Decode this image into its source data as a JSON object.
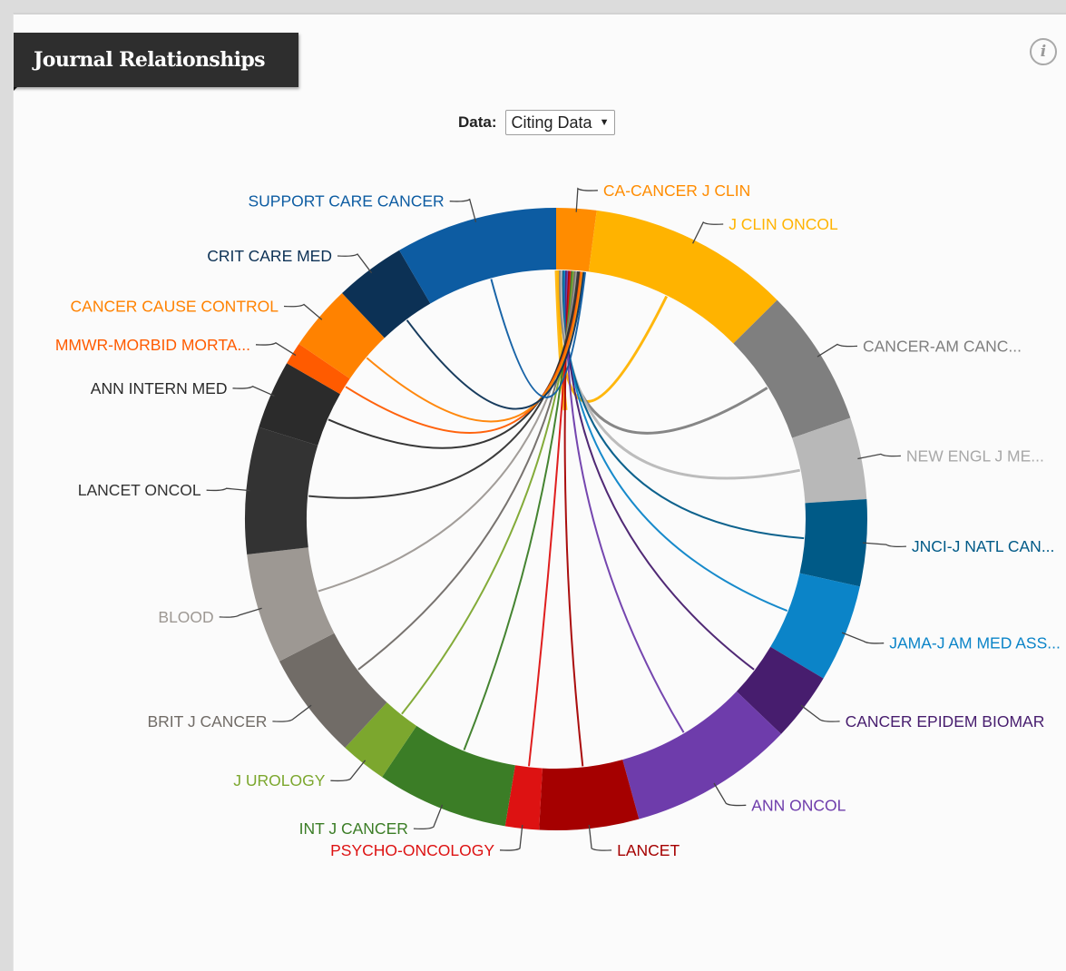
{
  "panel": {
    "title": "Journal Relationships",
    "info_icon": "info-icon"
  },
  "selector": {
    "label": "Data:",
    "value": "Citing Data",
    "caret": "▼"
  },
  "chart_data": {
    "type": "chord",
    "center_journal": "CA-CANCER J CLIN",
    "segments": [
      {
        "name": "CA-CANCER J CLIN",
        "color": "#ff8c00",
        "share": 2.5
      },
      {
        "name": "J CLIN ONCOL",
        "color": "#ffb300",
        "share": 12.6
      },
      {
        "name": "CANCER-AM CANC...",
        "color": "#7f7f7f",
        "share": 8.6
      },
      {
        "name": "NEW ENGL J ME...",
        "color": "#b8b8b8",
        "share": 5.1
      },
      {
        "name": "JNCI-J NATL CAN...",
        "color": "#005a87",
        "share": 5.4
      },
      {
        "name": "JAMA-J AM MED ASS...",
        "color": "#0b84c8",
        "share": 6.1
      },
      {
        "name": "CANCER EPIDEM BIOMAR",
        "color": "#471d6e",
        "share": 4.3
      },
      {
        "name": "ANN ONCOL",
        "color": "#6e3cab",
        "share": 10.3
      },
      {
        "name": "LANCET",
        "color": "#a50000",
        "share": 6.2
      },
      {
        "name": "PSYCHO-ONCOLOGY",
        "color": "#dd1212",
        "share": 2.1
      },
      {
        "name": "INT J CANCER",
        "color": "#3b7d26",
        "share": 8.2
      },
      {
        "name": "J UROLOGY",
        "color": "#7ca72e",
        "share": 2.9
      },
      {
        "name": "BRIT J CANCER",
        "color": "#716c67",
        "share": 6.7
      },
      {
        "name": "BLOOD",
        "color": "#9d9893",
        "share": 6.9
      },
      {
        "name": "LANCET ONCOL",
        "color": "#333333",
        "share": 7.9
      },
      {
        "name": "ANN INTERN MED",
        "color": "#2b2b2b",
        "share": 4.3
      },
      {
        "name": "MMWR-MORBID MORTA...",
        "color": "#ff5b00",
        "share": 1.4
      },
      {
        "name": "CANCER CAUSE CONTROL",
        "color": "#ff8200",
        "share": 4.1
      },
      {
        "name": "CRIT CARE MED",
        "color": "#0c3155",
        "share": 4.4
      },
      {
        "name": "SUPPORT CARE CANCER",
        "color": "#0d5ca2",
        "share": 10.1
      }
    ]
  }
}
